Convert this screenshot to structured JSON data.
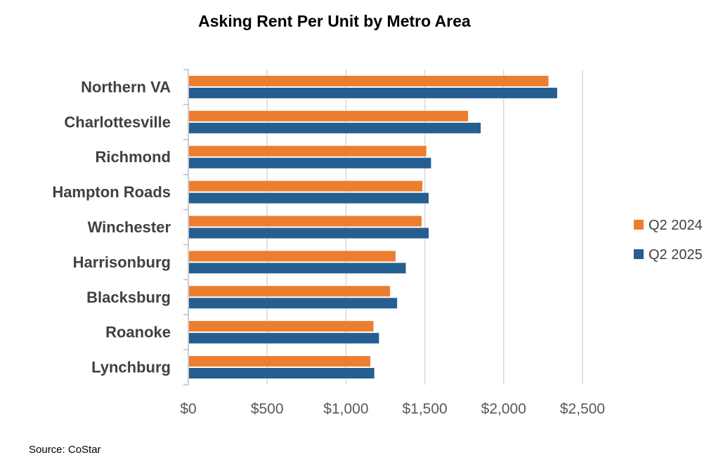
{
  "colors": {
    "q2_2024": "#ED7D31",
    "q2_2025": "#255E91",
    "grid": "#D9D9D9",
    "axis": "#BFBFBF"
  },
  "chart_data": {
    "type": "bar",
    "orientation": "horizontal",
    "title": "Asking Rent Per Unit by Metro Area",
    "source": "Source: CoStar",
    "categories": [
      "Northern VA",
      "Charlottesville",
      "Richmond",
      "Hampton Roads",
      "Winchester",
      "Harrisonburg",
      "Blacksburg",
      "Roanoke",
      "Lynchburg"
    ],
    "series": [
      {
        "name": "Q2 2024",
        "values": [
          2280,
          1770,
          1505,
          1480,
          1475,
          1310,
          1275,
          1170,
          1150
        ]
      },
      {
        "name": "Q2 2025",
        "values": [
          2335,
          1850,
          1535,
          1520,
          1520,
          1375,
          1320,
          1205,
          1175
        ]
      }
    ],
    "xlim": [
      0,
      2500
    ],
    "xticks": [
      "$0",
      "$500",
      "$1,000",
      "$1,500",
      "$2,000",
      "$2,500"
    ],
    "xgrid": true,
    "legend_position": "right"
  }
}
